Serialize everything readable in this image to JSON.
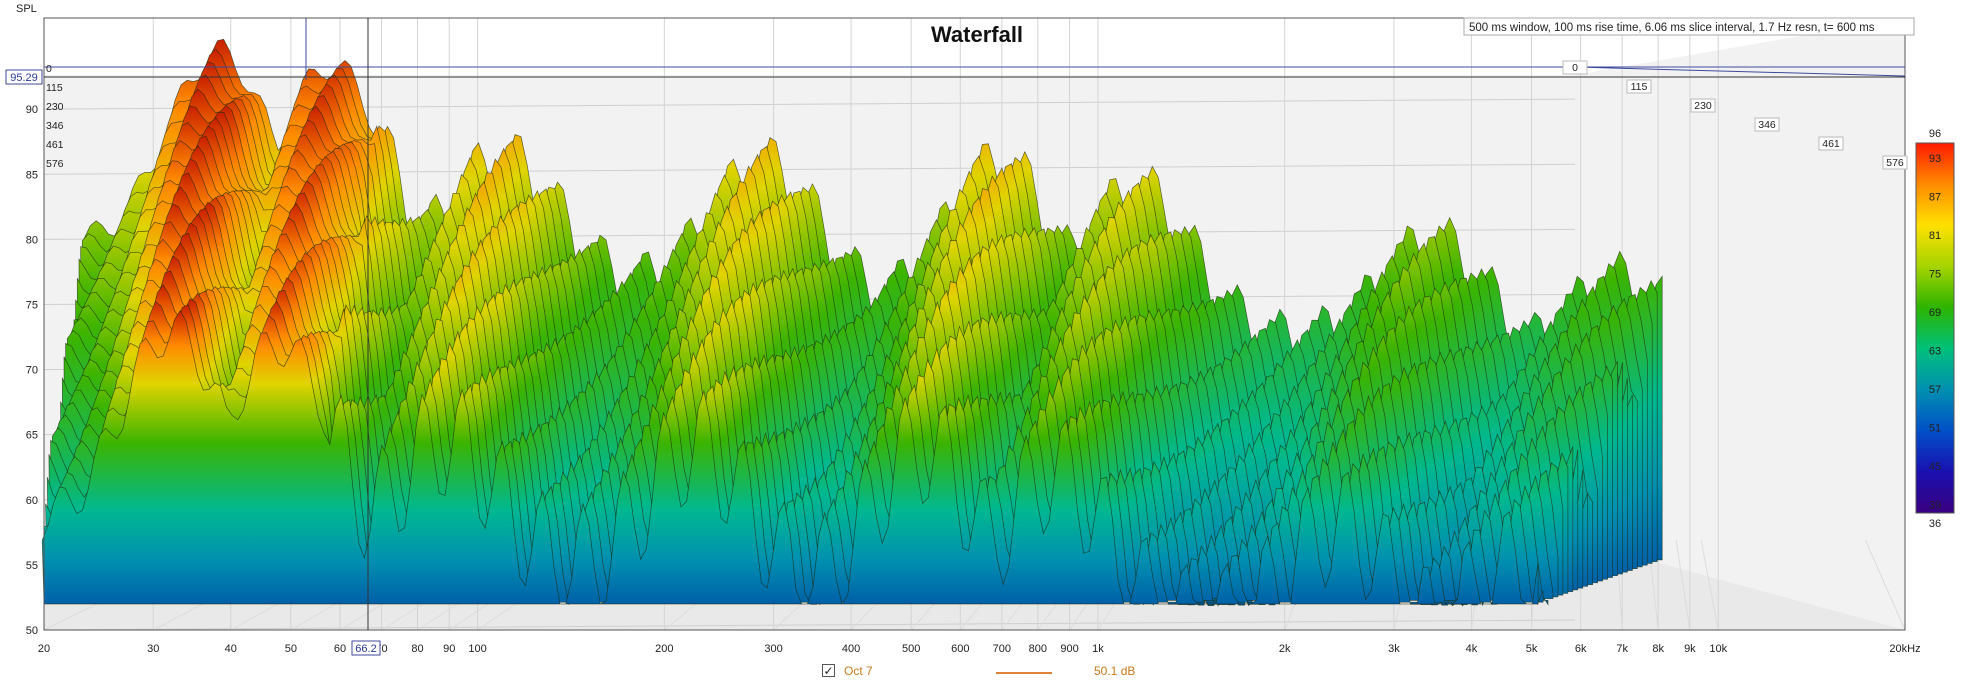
{
  "chart_data": {
    "type": "area",
    "title": "Waterfall",
    "info_label": "500 ms window, 100 ms rise time, 6.06 ms slice interval, 1.7 Hz resn, t= 600 ms",
    "ylabel": "SPL",
    "xlabel_unit": "kHz",
    "x_scale": "log",
    "xlim": [
      20,
      20000
    ],
    "ylim": [
      50,
      97
    ],
    "y_ticks": [
      50,
      55,
      60,
      65,
      70,
      75,
      80,
      85,
      90
    ],
    "x_ticks": [
      {
        "v": 20,
        "label": "20"
      },
      {
        "v": 30,
        "label": "30"
      },
      {
        "v": 40,
        "label": "40"
      },
      {
        "v": 50,
        "label": "50"
      },
      {
        "v": 60,
        "label": "60"
      },
      {
        "v": 70,
        "label": "70"
      },
      {
        "v": 80,
        "label": "80"
      },
      {
        "v": 90,
        "label": "90"
      },
      {
        "v": 100,
        "label": "100"
      },
      {
        "v": 200,
        "label": "200"
      },
      {
        "v": 300,
        "label": "300"
      },
      {
        "v": 400,
        "label": "400"
      },
      {
        "v": 500,
        "label": "500"
      },
      {
        "v": 600,
        "label": "600"
      },
      {
        "v": 700,
        "label": "700"
      },
      {
        "v": 800,
        "label": "800"
      },
      {
        "v": 900,
        "label": "900"
      },
      {
        "v": 1000,
        "label": "1k"
      },
      {
        "v": 2000,
        "label": "2k"
      },
      {
        "v": 3000,
        "label": "3k"
      },
      {
        "v": 4000,
        "label": "4k"
      },
      {
        "v": 5000,
        "label": "5k"
      },
      {
        "v": 6000,
        "label": "6k"
      },
      {
        "v": 7000,
        "label": "7k"
      },
      {
        "v": 8000,
        "label": "8k"
      },
      {
        "v": 9000,
        "label": "9k"
      },
      {
        "v": 10000,
        "label": "10k"
      },
      {
        "v": 20000,
        "label": "20kHz"
      }
    ],
    "time_ticks_ms": [
      "0",
      "115",
      "230",
      "346",
      "461",
      "576"
    ],
    "cursor": {
      "spl_readout": "95.29",
      "freq_readout": "66.2"
    },
    "colorbar": {
      "min": 36,
      "max": 96,
      "ticks": [
        "96",
        "93",
        "87",
        "81",
        "75",
        "69",
        "63",
        "57",
        "51",
        "45",
        "39",
        "36"
      ],
      "stops": [
        "#ff1a00",
        "#ff8a00",
        "#ffe000",
        "#a6d400",
        "#2db400",
        "#00c07a",
        "#0090b0",
        "#0050c8",
        "#1a10b0",
        "#3a0080"
      ]
    },
    "peaks": [
      {
        "f": 31,
        "spl": 88
      },
      {
        "f": 33,
        "spl": 95
      },
      {
        "f": 50,
        "spl": 94
      },
      {
        "f": 95,
        "spl": 86.5
      },
      {
        "f": 250,
        "spl": 86
      },
      {
        "f": 600,
        "spl": 86
      },
      {
        "f": 1000,
        "spl": 84
      },
      {
        "f": 3000,
        "spl": 80
      },
      {
        "f": 6000,
        "spl": 77
      }
    ],
    "legend": {
      "checkbox": "✓",
      "series_name": "Oct 7",
      "value": "50.1 dB"
    }
  }
}
